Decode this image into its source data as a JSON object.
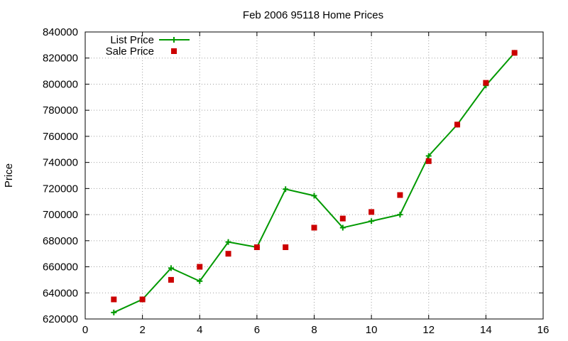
{
  "chart_data": {
    "type": "line",
    "title": "Feb 2006 95118 Home Prices",
    "xlabel": "",
    "ylabel": "Price",
    "xlim": [
      0,
      16
    ],
    "ylim": [
      620000,
      840000
    ],
    "x_ticks": [
      0,
      2,
      4,
      6,
      8,
      10,
      12,
      14,
      16
    ],
    "y_ticks": [
      620000,
      640000,
      660000,
      680000,
      700000,
      720000,
      740000,
      760000,
      780000,
      800000,
      820000,
      840000
    ],
    "grid": true,
    "legend_position": "top-left",
    "series": [
      {
        "name": "List Price",
        "style": "line+cross",
        "color": "#009900",
        "x": [
          1,
          2,
          3,
          4,
          5,
          6,
          7,
          8,
          9,
          10,
          11,
          12,
          13,
          14,
          15
        ],
        "y": [
          625000,
          635000,
          659000,
          649000,
          679000,
          675000,
          719500,
          714500,
          690000,
          695000,
          700000,
          745000,
          769000,
          799000,
          824000
        ]
      },
      {
        "name": "Sale Price",
        "style": "square",
        "color": "#cc0000",
        "x": [
          1,
          2,
          3,
          4,
          5,
          6,
          7,
          8,
          9,
          10,
          11,
          12,
          13,
          14,
          15
        ],
        "y": [
          635000,
          635000,
          650000,
          660000,
          670000,
          675000,
          675000,
          690000,
          697000,
          702000,
          715000,
          741000,
          769000,
          801000,
          824000
        ]
      }
    ]
  }
}
